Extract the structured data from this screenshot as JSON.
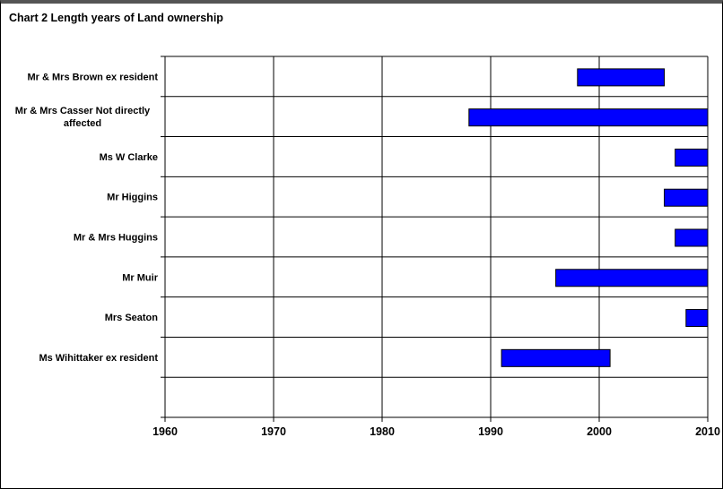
{
  "chart_data": {
    "type": "bar",
    "orientation": "horizontal-range",
    "title": "Chart 2 Length years of Land ownership",
    "xlabel": "",
    "ylabel": "",
    "xlim": [
      1960,
      2010
    ],
    "x_ticks": [
      "1960",
      "1970",
      "1980",
      "1990",
      "2000",
      "2010"
    ],
    "grid": true,
    "legend": "none",
    "bar_color": "#0000ff",
    "categories": [
      [
        "Mr & Mrs Brown ex resident"
      ],
      [
        "Mr & Mrs Casser Not directly",
        "affected"
      ],
      [
        "Ms W Clarke"
      ],
      [
        "Mr Higgins"
      ],
      [
        "Mr & Mrs Huggins"
      ],
      [
        "Mr Muir"
      ],
      [
        "Mrs Seaton"
      ],
      [
        "Ms Wihittaker ex resident"
      ]
    ],
    "ranges": [
      [
        1998,
        2006
      ],
      [
        1988,
        2010
      ],
      [
        2007,
        2010
      ],
      [
        2006,
        2010
      ],
      [
        2007,
        2010
      ],
      [
        1996,
        2010
      ],
      [
        2008,
        2010
      ],
      [
        1991,
        2001
      ]
    ]
  }
}
